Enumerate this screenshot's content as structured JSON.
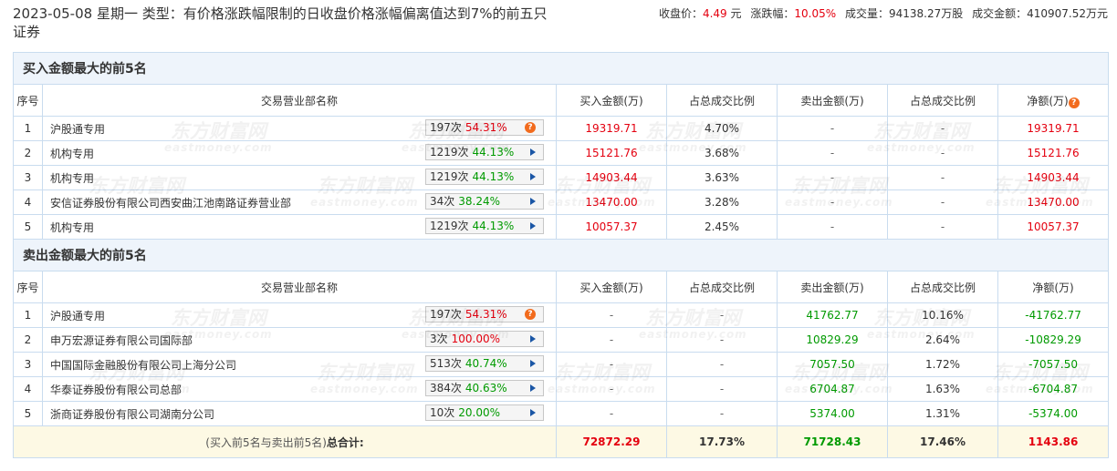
{
  "header": {
    "title": "2023-05-08 星期一 类型：有价格涨跌幅限制的日收盘价格涨幅偏离值达到7%的前五只证券",
    "stats": [
      {
        "label": "收盘价：",
        "value": "4.49",
        "unit": "元"
      },
      {
        "label": "涨跌幅：",
        "value": "10.05%"
      },
      {
        "label": "成交量：",
        "value": "94138.27万股"
      },
      {
        "label": "成交金额：",
        "value": "410907.52万元"
      }
    ]
  },
  "watermark": {
    "brand": "东方财富网",
    "site": "eastmoney.com"
  },
  "columns": [
    "序号",
    "交易营业部名称",
    "买入金额(万)",
    "占总成交比例",
    "卖出金额(万)",
    "占总成交比例",
    "净额(万)"
  ],
  "buy": {
    "title": "买入金额最大的前5名",
    "rows": [
      [
        "1",
        "沪股通专用",
        "197次",
        "54.31%",
        "19319.71",
        "4.70%",
        "-",
        "-",
        "19319.71"
      ],
      [
        "2",
        "机构专用",
        "1219次",
        "44.13%",
        "15121.76",
        "3.68%",
        "-",
        "-",
        "15121.76"
      ],
      [
        "3",
        "机构专用",
        "1219次",
        "44.13%",
        "14903.44",
        "3.63%",
        "-",
        "-",
        "14903.44"
      ],
      [
        "4",
        "安信证券股份有限公司西安曲江池南路证券营业部",
        "34次",
        "38.24%",
        "13470.00",
        "3.28%",
        "-",
        "-",
        "13470.00"
      ],
      [
        "5",
        "机构专用",
        "1219次",
        "44.13%",
        "10057.37",
        "2.45%",
        "-",
        "-",
        "10057.37"
      ]
    ]
  },
  "sell": {
    "title": "卖出金额最大的前5名",
    "rows": [
      [
        "1",
        "沪股通专用",
        "197次",
        "54.31%",
        "-",
        "-",
        "41762.77",
        "10.16%",
        "-41762.77"
      ],
      [
        "2",
        "申万宏源证券有限公司国际部",
        "3次",
        "100.00%",
        "-",
        "-",
        "10829.29",
        "2.64%",
        "-10829.29"
      ],
      [
        "3",
        "中国国际金融股份有限公司上海分公司",
        "513次",
        "40.74%",
        "-",
        "-",
        "7057.50",
        "1.72%",
        "-7057.50"
      ],
      [
        "4",
        "华泰证券股份有限公司总部",
        "384次",
        "40.63%",
        "-",
        "-",
        "6704.87",
        "1.63%",
        "-6704.87"
      ],
      [
        "5",
        "浙商证券股份有限公司湖南分公司",
        "10次",
        "20.00%",
        "-",
        "-",
        "5374.00",
        "1.31%",
        "-5374.00"
      ]
    ]
  },
  "total": {
    "note": "(买入前5名与卖出前5名)",
    "label": "总合计:",
    "buy": "72872.29",
    "buy_pct": "17.73%",
    "sell": "71728.43",
    "sell_pct": "17.46%",
    "net": "1143.86"
  }
}
